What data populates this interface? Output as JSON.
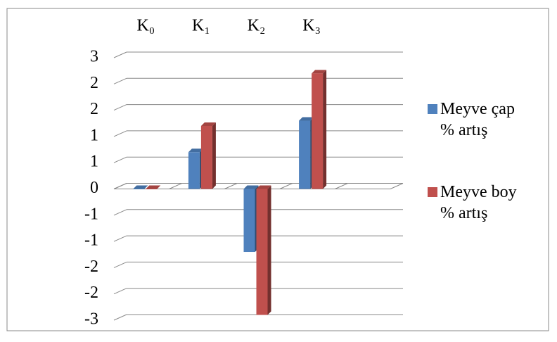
{
  "chart_data": {
    "type": "bar3d",
    "categories": [
      "K₀",
      "K₁",
      "K₂",
      "K₃",
      null
    ],
    "series": [
      {
        "name": "Meyve çap % artış",
        "color": "#4f81bd",
        "values": [
          0,
          0.7,
          -1.2,
          1.3,
          null
        ]
      },
      {
        "name": "Meyve boy % artış",
        "color": "#c0504d",
        "values": [
          0,
          1.2,
          -2.4,
          2.2,
          null
        ]
      }
    ],
    "ylim": [
      -2.5,
      2.5
    ],
    "yticks": [
      {
        "value": -2.5,
        "label": "-3"
      },
      -2,
      {
        "value": -1.5,
        "label": "-2"
      },
      -1,
      {
        "value": -0.5,
        "label": "-1"
      },
      0,
      {
        "value": 0.5,
        "label": "1"
      },
      1,
      {
        "value": 1.5,
        "label": "2"
      },
      2,
      {
        "value": 2.5,
        "label": "3"
      }
    ],
    "grid": true,
    "legend": "right"
  }
}
